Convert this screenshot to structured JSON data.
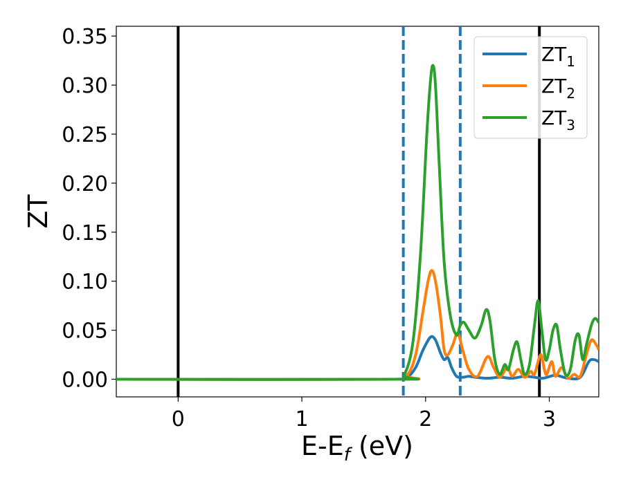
{
  "chart_data": {
    "type": "line",
    "xlabel": "E-E",
    "xlabel_sub": "f",
    "xlabel_unit": " (eV)",
    "ylabel": "ZT",
    "xlim": [
      -0.5,
      3.4
    ],
    "ylim": [
      -0.018,
      0.36
    ],
    "xticks": [
      0,
      1,
      2,
      3
    ],
    "xtick_labels": [
      "0",
      "1",
      "2",
      "3"
    ],
    "yticks": [
      0.0,
      0.05,
      0.1,
      0.15,
      0.2,
      0.25,
      0.3,
      0.35
    ],
    "ytick_labels": [
      "0.00",
      "0.05",
      "0.10",
      "0.15",
      "0.20",
      "0.25",
      "0.30",
      "0.35"
    ],
    "grid": false,
    "legend_position": "top-right",
    "vlines": [
      {
        "x": 0.0,
        "style": "solid",
        "color": "#000000"
      },
      {
        "x": 2.92,
        "style": "solid",
        "color": "#000000"
      },
      {
        "x": 1.82,
        "style": "dashed",
        "color": "#1f77b4"
      },
      {
        "x": 2.28,
        "style": "dashed",
        "color": "#1f77b4"
      }
    ],
    "series": [
      {
        "name": "ZT",
        "name_sub": "1",
        "color": "#1f77b4",
        "points": [
          [
            -0.5,
            0
          ],
          [
            1.75,
            0
          ],
          [
            1.85,
            0.002
          ],
          [
            1.92,
            0.012
          ],
          [
            1.98,
            0.03
          ],
          [
            2.04,
            0.043
          ],
          [
            2.08,
            0.04
          ],
          [
            2.12,
            0.027
          ],
          [
            2.15,
            0.02
          ],
          [
            2.18,
            0.022
          ],
          [
            2.21,
            0.012
          ],
          [
            2.25,
            0.003
          ],
          [
            2.3,
            0.002
          ],
          [
            2.35,
            0.003
          ],
          [
            2.4,
            0.002
          ],
          [
            2.5,
            0.001
          ],
          [
            2.6,
            0.002
          ],
          [
            2.7,
            0.001
          ],
          [
            2.8,
            0.003
          ],
          [
            2.88,
            0.002
          ],
          [
            2.95,
            0.001
          ],
          [
            3.05,
            0.004
          ],
          [
            3.15,
            0.001
          ],
          [
            3.25,
            0.002
          ],
          [
            3.32,
            0.018
          ],
          [
            3.36,
            0.02
          ],
          [
            3.4,
            0.018
          ]
        ]
      },
      {
        "name": "ZT",
        "name_sub": "2",
        "color": "#ff7f0e",
        "points": [
          [
            -0.5,
            0
          ],
          [
            1.75,
            0
          ],
          [
            1.85,
            0.004
          ],
          [
            1.92,
            0.025
          ],
          [
            1.98,
            0.07
          ],
          [
            2.02,
            0.1
          ],
          [
            2.05,
            0.111
          ],
          [
            2.08,
            0.1
          ],
          [
            2.12,
            0.065
          ],
          [
            2.15,
            0.03
          ],
          [
            2.18,
            0.025
          ],
          [
            2.22,
            0.035
          ],
          [
            2.26,
            0.047
          ],
          [
            2.3,
            0.03
          ],
          [
            2.35,
            0.01
          ],
          [
            2.42,
            0.003
          ],
          [
            2.5,
            0.023
          ],
          [
            2.55,
            0.012
          ],
          [
            2.6,
            0.002
          ],
          [
            2.66,
            0.012
          ],
          [
            2.7,
            0.003
          ],
          [
            2.75,
            0.01
          ],
          [
            2.8,
            0.002
          ],
          [
            2.85,
            0.008
          ],
          [
            2.88,
            0.005
          ],
          [
            2.93,
            0.025
          ],
          [
            2.96,
            0.01
          ],
          [
            2.98,
            0.005
          ],
          [
            3.02,
            0.018
          ],
          [
            3.05,
            0.003
          ],
          [
            3.1,
            0.012
          ],
          [
            3.15,
            0.001
          ],
          [
            3.2,
            0.005
          ],
          [
            3.25,
            0.003
          ],
          [
            3.3,
            0.025
          ],
          [
            3.34,
            0.04
          ],
          [
            3.38,
            0.035
          ],
          [
            3.4,
            0.03
          ]
        ]
      },
      {
        "name": "ZT",
        "name_sub": "3",
        "color": "#2ca02c",
        "points": [
          [
            -0.5,
            0
          ],
          [
            1.75,
            0
          ],
          [
            1.83,
            0.005
          ],
          [
            1.9,
            0.04
          ],
          [
            1.96,
            0.13
          ],
          [
            2.01,
            0.25
          ],
          [
            2.04,
            0.305
          ],
          [
            2.06,
            0.32
          ],
          [
            2.08,
            0.3
          ],
          [
            2.11,
            0.22
          ],
          [
            2.15,
            0.12
          ],
          [
            2.2,
            0.065
          ],
          [
            2.25,
            0.045
          ],
          [
            2.28,
            0.055
          ],
          [
            2.31,
            0.058
          ],
          [
            2.35,
            0.05
          ],
          [
            2.4,
            0.042
          ],
          [
            2.45,
            0.055
          ],
          [
            2.49,
            0.071
          ],
          [
            2.52,
            0.06
          ],
          [
            2.56,
            0.02
          ],
          [
            2.6,
            0.005
          ],
          [
            2.64,
            0.015
          ],
          [
            2.67,
            0.01
          ],
          [
            2.71,
            0.03
          ],
          [
            2.74,
            0.038
          ],
          [
            2.77,
            0.02
          ],
          [
            2.8,
            0.005
          ],
          [
            2.84,
            0.015
          ],
          [
            2.88,
            0.055
          ],
          [
            2.91,
            0.08
          ],
          [
            2.94,
            0.05
          ],
          [
            2.97,
            0.02
          ],
          [
            3.0,
            0.03
          ],
          [
            3.03,
            0.05
          ],
          [
            3.06,
            0.055
          ],
          [
            3.09,
            0.03
          ],
          [
            3.13,
            0.005
          ],
          [
            3.17,
            0.01
          ],
          [
            3.21,
            0.04
          ],
          [
            3.24,
            0.045
          ],
          [
            3.27,
            0.02
          ],
          [
            3.3,
            0.035
          ],
          [
            3.34,
            0.055
          ],
          [
            3.37,
            0.062
          ],
          [
            3.4,
            0.058
          ]
        ]
      }
    ]
  }
}
